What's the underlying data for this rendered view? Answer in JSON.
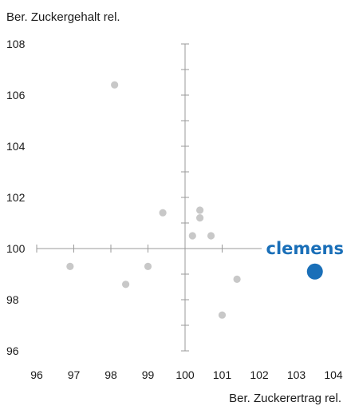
{
  "chart_data": {
    "type": "scatter",
    "ylabel": "Ber. Zuckergehalt rel.",
    "xlabel": "Ber. Zuckerertrag rel.",
    "xlim": [
      96,
      104
    ],
    "ylim": [
      96,
      108
    ],
    "x_ticks": [
      "96",
      "97",
      "98",
      "99",
      "100",
      "101",
      "102",
      "103",
      "104"
    ],
    "y_ticks": [
      "96",
      "98",
      "100",
      "102",
      "104",
      "106",
      "108"
    ],
    "grid": false,
    "axis_cross": [
      100,
      100
    ],
    "series": [
      {
        "color": "#c8c8c8",
        "points": [
          {
            "x": 98.1,
            "y": 106.4
          },
          {
            "x": 96.9,
            "y": 99.3
          },
          {
            "x": 98.4,
            "y": 98.6
          },
          {
            "x": 99.0,
            "y": 99.3
          },
          {
            "x": 99.4,
            "y": 101.4
          },
          {
            "x": 100.2,
            "y": 100.5
          },
          {
            "x": 100.4,
            "y": 101.5
          },
          {
            "x": 100.4,
            "y": 101.2
          },
          {
            "x": 100.7,
            "y": 100.5
          },
          {
            "x": 101.0,
            "y": 97.4
          },
          {
            "x": 101.4,
            "y": 98.8
          }
        ]
      },
      {
        "name": "clemens",
        "color": "#1a6fb8",
        "points": [
          {
            "x": 103.5,
            "y": 99.1
          }
        ]
      }
    ],
    "annotation": {
      "text": "clemens",
      "color": "#1a6fb8"
    }
  }
}
